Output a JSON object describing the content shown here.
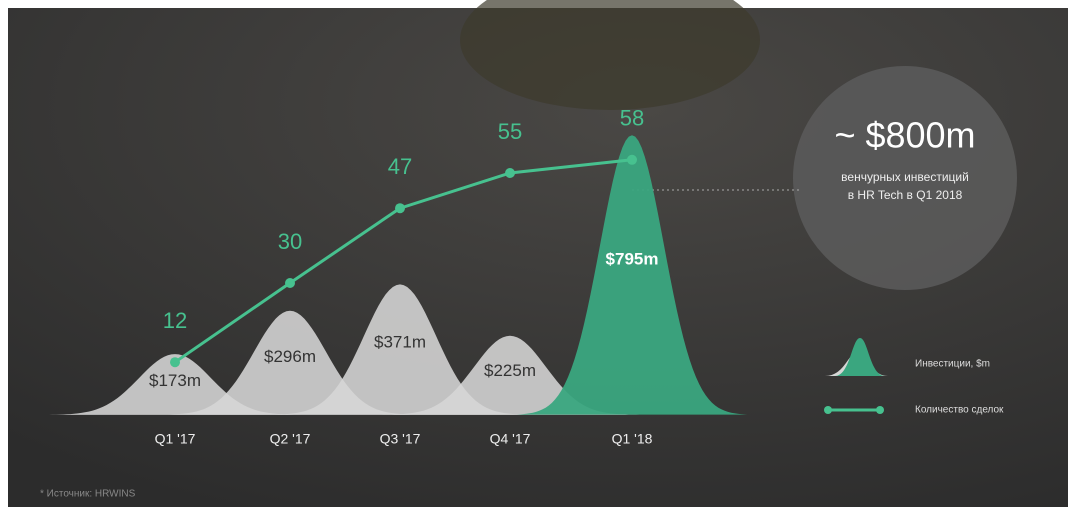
{
  "chart_data": {
    "type": "bar",
    "categories": [
      "Q1 '17",
      "Q2 '17",
      "Q3 '17",
      "Q4 '17",
      "Q1 '18"
    ],
    "ylim": [
      0,
      1000
    ],
    "y2lim": [
      0,
      80
    ],
    "series": [
      {
        "name": "Инвестиции, $m",
        "type": "bar",
        "colors": [
          "#d6d6d6",
          "#d6d6d6",
          "#d6d6d6",
          "#d6d6d6",
          "#3aa67f"
        ],
        "values": [
          173,
          296,
          371,
          225,
          795
        ],
        "value_labels": [
          "$173m",
          "$296m",
          "$371m",
          "$225m",
          "$795m"
        ]
      },
      {
        "name": "Количество сделок",
        "type": "line",
        "axis": "y2",
        "color": "#47c18f",
        "values": [
          12,
          30,
          47,
          55,
          58
        ]
      }
    ]
  },
  "callout": {
    "title": "~ $800m",
    "lines": [
      "венчурных инвестиций",
      "в HR Tech в Q1 2018"
    ]
  },
  "source": "* Источник: HRWINS"
}
